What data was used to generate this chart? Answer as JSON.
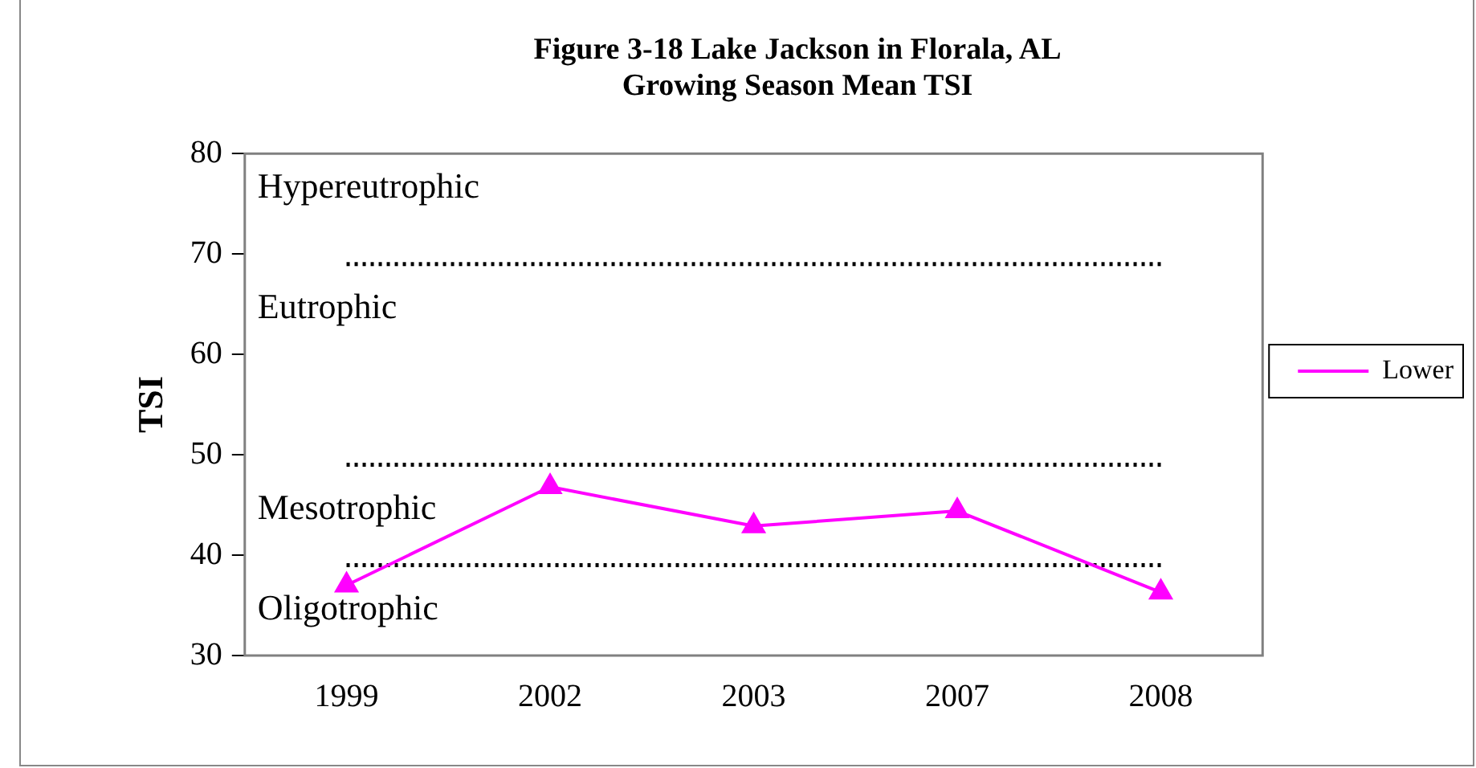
{
  "chart_data": {
    "type": "line",
    "title": "Figure 3-18 Lake Jackson in Florala, AL\nGrowing Season Mean TSI",
    "ylabel": "TSI",
    "categories": [
      "1999",
      "2002",
      "2003",
      "2007",
      "2008"
    ],
    "series": [
      {
        "name": "Lower",
        "color": "#ff00ff",
        "values": [
          37,
          46.8,
          42.9,
          44.4,
          36.3
        ]
      }
    ],
    "ylim": [
      30,
      80
    ],
    "yticks": [
      30,
      40,
      50,
      60,
      70,
      80
    ],
    "grid": false,
    "legend": "right",
    "marker": "triangle",
    "line_style": "solid",
    "ref_lines": [
      {
        "axis": "y",
        "value": 69,
        "line_style": "dotted",
        "color": "#000000"
      },
      {
        "axis": "y",
        "value": 49,
        "line_style": "dotted",
        "color": "#000000"
      },
      {
        "axis": "y",
        "value": 39,
        "line_style": "dotted",
        "color": "#000000"
      }
    ],
    "annotations": [
      "Hypereutrophic",
      "Eutrophic",
      "Mesotrophic",
      "Oligotrophic"
    ]
  }
}
